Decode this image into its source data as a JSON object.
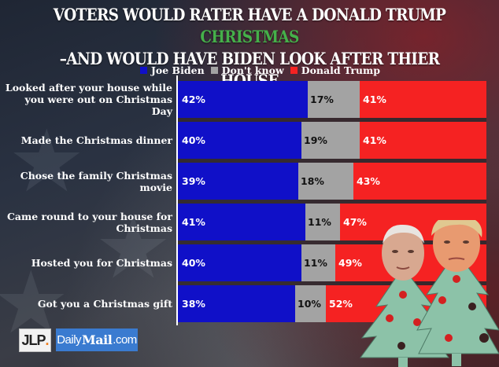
{
  "chart_data": {
    "type": "bar",
    "orientation": "horizontal-stacked",
    "title_line1_white": "VOTERS  WOULD RATER HAVE A DONALD TRUMP ",
    "title_line1_green": "CHRISTMAS",
    "title_line2": "–AND WOULD HAVE BIDEN LOOK AFTER THIER HOUSE",
    "xlabel": "",
    "ylabel": "",
    "xlim": [
      0,
      100
    ],
    "grid": false,
    "legend_position": "top-center",
    "categories": [
      "Looked after your house while you were out on Christmas Day",
      "Made the Christmas dinner",
      "Chose the family Christmas movie",
      "Came round to your house for Christmas",
      "Hosted you for Christmas",
      "Got you a Christmas gift"
    ],
    "series": [
      {
        "name": "Joe Biden",
        "color": "#1010c8",
        "values": [
          42,
          40,
          39,
          41,
          40,
          38
        ]
      },
      {
        "name": "Don't know",
        "color": "#a3a3a3",
        "values": [
          17,
          19,
          18,
          11,
          11,
          10
        ]
      },
      {
        "name": "Donald Trump",
        "color": "#f52222",
        "values": [
          41,
          41,
          43,
          47,
          49,
          52
        ]
      }
    ]
  },
  "title_green_color": "#45b04a",
  "logos": {
    "jlp_text": "JLP",
    "jlp_dot": ".",
    "dm_daily": "Daily",
    "dm_mail": "Mail",
    "dm_com": ".com"
  },
  "decor": {
    "images": [
      "joe-biden-face",
      "donald-trump-face",
      "christmas-tree",
      "christmas-tree"
    ],
    "tree_color": "#8cc2a8",
    "ornament_color": "#d42020"
  }
}
